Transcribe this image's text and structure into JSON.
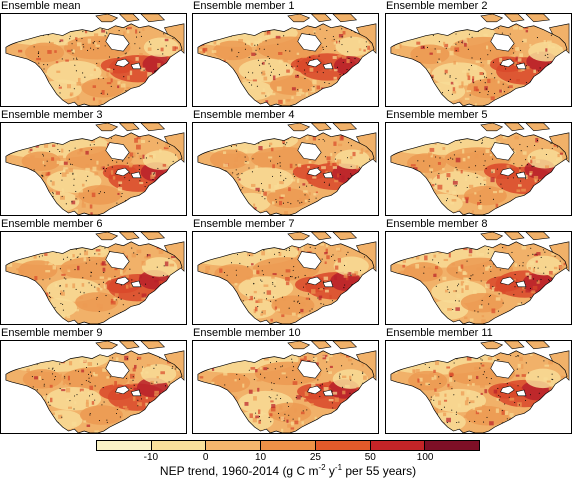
{
  "panels": [
    {
      "title": "Ensemble mean"
    },
    {
      "title": "Ensemble member 1"
    },
    {
      "title": "Ensemble member 2"
    },
    {
      "title": "Ensemble member 3"
    },
    {
      "title": "Ensemble member 4"
    },
    {
      "title": "Ensemble member 5"
    },
    {
      "title": "Ensemble member 6"
    },
    {
      "title": "Ensemble member 7"
    },
    {
      "title": "Ensemble member 8"
    },
    {
      "title": "Ensemble member 9"
    },
    {
      "title": "Ensemble member 10"
    },
    {
      "title": "Ensemble member 11"
    }
  ],
  "colorbar": {
    "tick_labels": [
      "-10",
      "0",
      "10",
      "25",
      "50",
      "100"
    ],
    "colors": [
      "#fbf3c6",
      "#f9e09b",
      "#f5b66d",
      "#ee9147",
      "#e35a2a",
      "#c42427",
      "#7e0f26"
    ],
    "caption_prefix": "NEP trend, 1960-2014 (g C m",
    "caption_sup1": "-2",
    "caption_mid": " y",
    "caption_sup2": "-1",
    "caption_suffix": " per 55 years)"
  },
  "map_colors": {
    "land_base": "#f1b169",
    "land_low": "#f8dc96",
    "land_mid": "#ec9a52",
    "land_high": "#d9482a",
    "land_max": "#b8202a",
    "stipple": "#000000",
    "coast": "#000000"
  }
}
